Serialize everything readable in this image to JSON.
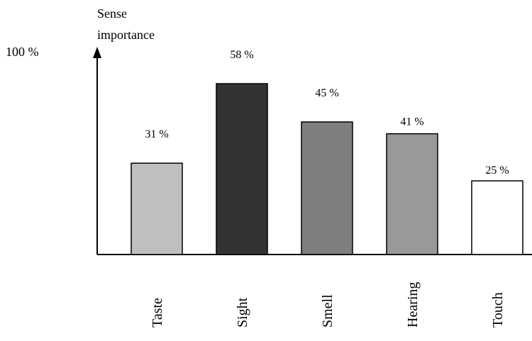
{
  "chart_data": {
    "type": "bar",
    "ylabel_lines": [
      "Sense",
      "importance"
    ],
    "y_max_label": "100 %",
    "categories": [
      "Taste",
      "Sight",
      "Smell",
      "Hearing",
      "Touch"
    ],
    "values": [
      31,
      58,
      45,
      41,
      25
    ],
    "value_labels": [
      "31 %",
      "58 %",
      "45 %",
      "41 %",
      "25 %"
    ],
    "colors": [
      "#bfbfbf",
      "#333333",
      "#7f7f7f",
      "#999999",
      "#ffffff"
    ],
    "grid": false,
    "legend": "none"
  }
}
